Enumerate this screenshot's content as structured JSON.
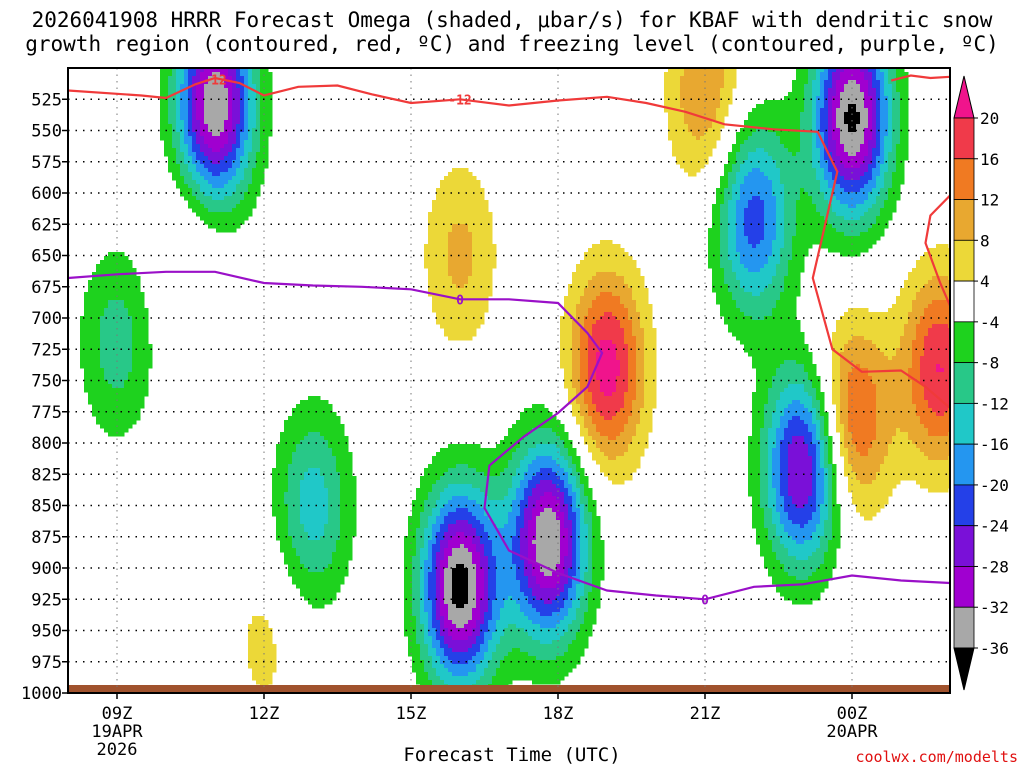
{
  "title_line1": "2026041908 HRRR Forecast Omega (shaded, μbar/s) for KBAF with dendritic snow",
  "title_line2": "growth region (contoured, red, ºC) and freezing level (contoured, purple, ºC)",
  "credit": "coolwx.com/modelts",
  "chart_data": {
    "type": "heatmap",
    "xlabel": "Forecast Time (UTC)",
    "ylabel": "",
    "x_range_hours": [
      8,
      26
    ],
    "y_range_mb": [
      500,
      1000
    ],
    "y_ticks": [
      525,
      550,
      575,
      600,
      625,
      650,
      675,
      700,
      725,
      750,
      775,
      800,
      825,
      850,
      875,
      900,
      925,
      950,
      975,
      1000
    ],
    "x_ticks": [
      {
        "hour": 9,
        "label": "09Z",
        "sub1": "19APR",
        "sub2": "2026"
      },
      {
        "hour": 12,
        "label": "12Z",
        "sub1": "",
        "sub2": ""
      },
      {
        "hour": 15,
        "label": "15Z",
        "sub1": "",
        "sub2": ""
      },
      {
        "hour": 18,
        "label": "18Z",
        "sub1": "",
        "sub2": ""
      },
      {
        "hour": 21,
        "label": "21Z",
        "sub1": "",
        "sub2": ""
      },
      {
        "hour": 24,
        "label": "00Z",
        "sub1": "20APR",
        "sub2": ""
      }
    ],
    "grid": true,
    "colorbar": {
      "ticks": [
        20,
        16,
        12,
        8,
        4,
        -4,
        -8,
        -12,
        -16,
        -20,
        -24,
        -28,
        -32,
        -36
      ],
      "levels": [
        {
          "min": 16,
          "max": 20,
          "color": "#f03a4a"
        },
        {
          "min": 12,
          "max": 16,
          "color": "#f07a22"
        },
        {
          "min": 8,
          "max": 12,
          "color": "#e8a830"
        },
        {
          "min": 4,
          "max": 8,
          "color": "#ecd838"
        },
        {
          "min": -4,
          "max": 4,
          "color": "#ffffff"
        },
        {
          "min": -8,
          "max": -4,
          "color": "#1ed21e"
        },
        {
          "min": -12,
          "max": -8,
          "color": "#28c888"
        },
        {
          "min": -16,
          "max": -12,
          "color": "#20c8c8"
        },
        {
          "min": -20,
          "max": -16,
          "color": "#2496f0"
        },
        {
          "min": -24,
          "max": -20,
          "color": "#2440e8"
        },
        {
          "min": -28,
          "max": -24,
          "color": "#7a10d8"
        },
        {
          "min": -32,
          "max": -28,
          "color": "#a000d0"
        },
        {
          "min": -36,
          "max": -32,
          "color": "#a8a8a8"
        }
      ],
      "top_color": "#f0148c",
      "bottom_color": "#000000"
    },
    "omega_centers": [
      {
        "hour": 16.0,
        "mb": 915,
        "value": -38
      },
      {
        "hour": 17.8,
        "mb": 878,
        "value": -36
      },
      {
        "hour": 11.0,
        "mb": 530,
        "value": -36
      },
      {
        "hour": 24.0,
        "mb": 540,
        "value": -37
      },
      {
        "hour": 23.0,
        "mb": 820,
        "value": -30
      },
      {
        "hour": 22.0,
        "mb": 620,
        "value": -22
      },
      {
        "hour": 13.0,
        "mb": 850,
        "value": -14
      },
      {
        "hour": 9.0,
        "mb": 720,
        "value": -10
      },
      {
        "hour": 19.0,
        "mb": 740,
        "value": 22
      },
      {
        "hour": 24.0,
        "mb": 780,
        "value": 18
      },
      {
        "hour": 25.8,
        "mb": 740,
        "value": 20
      },
      {
        "hour": 16.0,
        "mb": 650,
        "value": 9
      },
      {
        "hour": 21.0,
        "mb": 520,
        "value": 12
      },
      {
        "hour": 10.5,
        "mb": 650,
        "value": 5
      },
      {
        "hour": 12.0,
        "mb": 960,
        "value": 5
      }
    ],
    "dgz_label": "-12",
    "dgz_minus12": [
      [
        8.0,
        518
      ],
      [
        9.5,
        522
      ],
      [
        10.0,
        524
      ],
      [
        10.6,
        513
      ],
      [
        11.0,
        508
      ],
      [
        11.5,
        512
      ],
      [
        12.0,
        522
      ],
      [
        12.7,
        515
      ],
      [
        13.5,
        514
      ],
      [
        14.2,
        521
      ],
      [
        15.0,
        528
      ],
      [
        16.0,
        525
      ],
      [
        17.0,
        530
      ],
      [
        18.0,
        526
      ],
      [
        19.0,
        523
      ],
      [
        19.8,
        528
      ],
      [
        20.6,
        535
      ],
      [
        21.4,
        545
      ],
      [
        22.4,
        549
      ],
      [
        23.3,
        551
      ],
      [
        23.7,
        583
      ],
      [
        23.2,
        668
      ],
      [
        23.6,
        725
      ],
      [
        24.2,
        743
      ],
      [
        25.0,
        742
      ],
      [
        25.5,
        755
      ],
      [
        26.0,
        772
      ]
    ],
    "dgz_minus12_b": [
      [
        24.8,
        510
      ],
      [
        25.2,
        506
      ],
      [
        25.6,
        508
      ],
      [
        26.0,
        507
      ]
    ],
    "dgz_minus12_c": [
      [
        26.0,
        602
      ],
      [
        25.6,
        618
      ],
      [
        25.5,
        640
      ],
      [
        25.8,
        672
      ],
      [
        26.0,
        690
      ]
    ],
    "freezing_label": "0",
    "freezing_level": [
      [
        8.0,
        668
      ],
      [
        9.0,
        665
      ],
      [
        10.0,
        663
      ],
      [
        11.0,
        663
      ],
      [
        12.0,
        672
      ],
      [
        13.0,
        674
      ],
      [
        14.0,
        675
      ],
      [
        15.0,
        677
      ],
      [
        16.0,
        685
      ],
      [
        17.0,
        685
      ],
      [
        18.0,
        688
      ],
      [
        18.6,
        712
      ],
      [
        18.9,
        728
      ],
      [
        18.6,
        755
      ],
      [
        18.0,
        776
      ],
      [
        17.3,
        795
      ],
      [
        16.6,
        818
      ],
      [
        16.5,
        852
      ],
      [
        17.0,
        886
      ],
      [
        18.0,
        904
      ],
      [
        19.0,
        918
      ],
      [
        20.0,
        922
      ],
      [
        21.0,
        925
      ],
      [
        22.0,
        915
      ],
      [
        23.0,
        913
      ],
      [
        24.0,
        906
      ],
      [
        25.0,
        910
      ],
      [
        26.0,
        912
      ]
    ]
  }
}
